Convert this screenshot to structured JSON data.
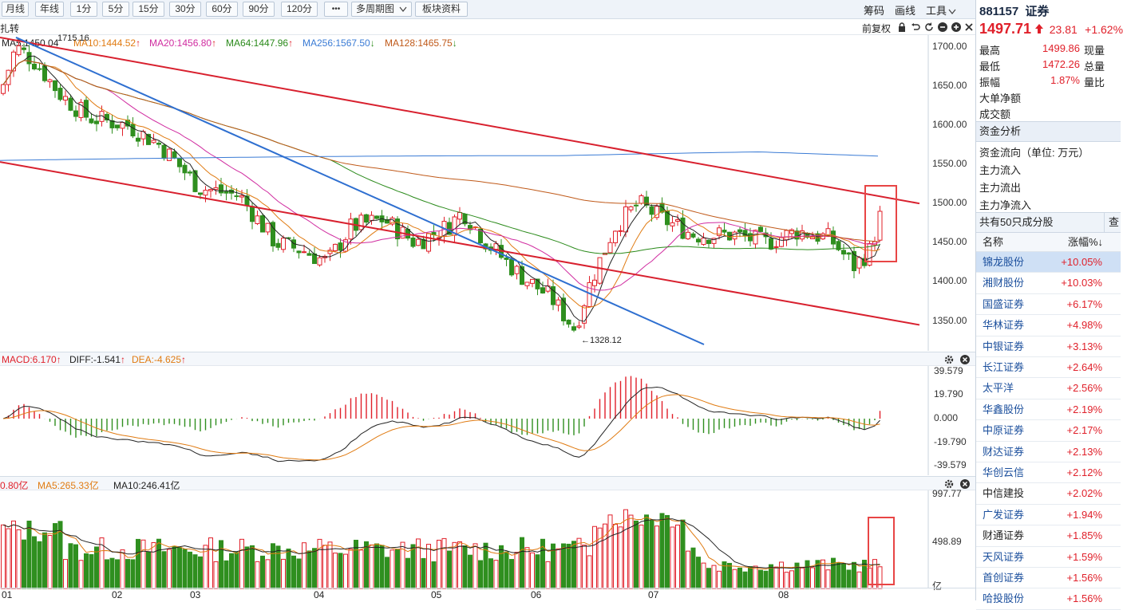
{
  "toolbar": {
    "buttons": [
      "月线",
      "年线",
      "1分",
      "5分",
      "15分",
      "30分",
      "60分",
      "90分",
      "120分",
      "•••",
      "多周期图",
      "板块资料"
    ],
    "right": [
      "筹码",
      "画线",
      "工具"
    ],
    "right_sub": [
      "前复权"
    ]
  },
  "chart_label": "扎转",
  "ma_legend": {
    "ma5": "MA5:1450.04",
    "ma10": "MA10:1444.52",
    "ma20": "MA20:1456.80",
    "ma64": "MA64:1447.96",
    "ma256": "MA256:1567.50",
    "ma128": "MA128:1465.75"
  },
  "price_axis": [
    "1700.00",
    "1650.00",
    "1600.00",
    "1550.00",
    "1500.00",
    "1450.00",
    "1400.00",
    "1350.00"
  ],
  "annotations": {
    "high": "1715.16",
    "low": "←1328.12"
  },
  "macd_legend": {
    "macd": "MACD:6.170",
    "diff": "DIFF:-1.541",
    "dea": "DEA:-4.625"
  },
  "macd_axis": [
    "39.579",
    "19.790",
    "0.000",
    "-19.790",
    "-39.579"
  ],
  "vol_legend": {
    "vol": "0.80亿",
    "ma5": "MA5:265.33亿",
    "ma10": "MA10:246.41亿"
  },
  "vol_axis": [
    "997.77",
    "498.89",
    "亿"
  ],
  "month_axis": [
    "01",
    "02",
    "03",
    "04",
    "05",
    "06",
    "07",
    "08"
  ],
  "side": {
    "code": "881157",
    "name": "证券",
    "price": "1497.71",
    "change": "23.81",
    "pct": "+1.62%",
    "stats": [
      {
        "label": "最高",
        "value": "1499.86",
        "label2": "现量"
      },
      {
        "label": "最低",
        "value": "1472.26",
        "label2": "总量"
      },
      {
        "label": "振幅",
        "value": "1.87%",
        "label2": "量比"
      },
      {
        "label": "大单净额",
        "value": "",
        "label2": ""
      },
      {
        "label": "成交额",
        "value": "",
        "label2": ""
      }
    ],
    "fund_title": "资金分析",
    "fund_rows": [
      "资金流向（单位: 万元）",
      "主力流入",
      "主力流出",
      "主力净流入"
    ],
    "constituents_title": "共有50只成分股",
    "constituents_btn": "查",
    "col_name": "名称",
    "col_pct": "涨幅%↓",
    "stocks": [
      {
        "name": "锦龙股份",
        "pct": "+10.05%"
      },
      {
        "name": "湘财股份",
        "pct": "+10.03%"
      },
      {
        "name": "国盛证券",
        "pct": "+6.17%"
      },
      {
        "name": "华林证券",
        "pct": "+4.98%"
      },
      {
        "name": "中银证券",
        "pct": "+3.13%"
      },
      {
        "name": "长江证券",
        "pct": "+2.64%"
      },
      {
        "name": "太平洋",
        "pct": "+2.56%"
      },
      {
        "name": "华鑫股份",
        "pct": "+2.19%"
      },
      {
        "name": "中原证券",
        "pct": "+2.17%"
      },
      {
        "name": "财达证券",
        "pct": "+2.13%"
      },
      {
        "name": "华创云信",
        "pct": "+2.12%"
      },
      {
        "name": "中信建投",
        "pct": "+2.02%"
      },
      {
        "name": "广发证券",
        "pct": "+1.94%"
      },
      {
        "name": "财通证券",
        "pct": "+1.85%"
      },
      {
        "name": "天风证券",
        "pct": "+1.59%"
      },
      {
        "name": "首创证券",
        "pct": "+1.56%"
      },
      {
        "name": "哈投股份",
        "pct": "+1.56%"
      }
    ]
  },
  "colors": {
    "up": "#e0202a",
    "down": "#2f8f1f",
    "accent": "#1a4e9c"
  }
}
